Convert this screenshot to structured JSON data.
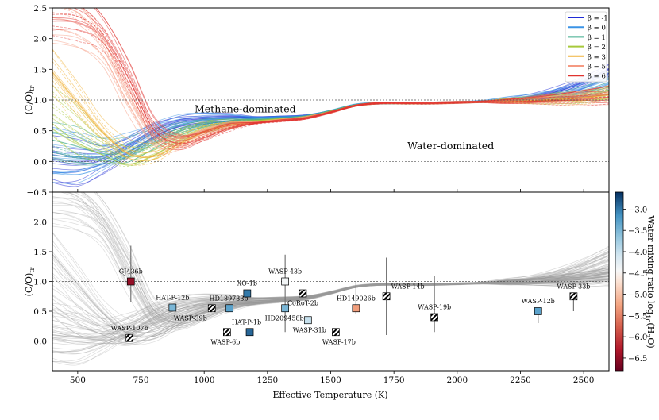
{
  "colors": {
    "beta": [
      "#1f2bd6",
      "#3a93e6",
      "#3aaa8a",
      "#a7c93b",
      "#f0b23a",
      "#f59a82",
      "#e0332f"
    ],
    "gray_curve": "#9a9a9a",
    "axis": "#000000"
  },
  "chart_data": [
    {
      "type": "line",
      "panel": "top",
      "ylabel": "(C/O)tr",
      "ylim": [
        -0.5,
        2.5
      ],
      "xlim": [
        400,
        2600
      ],
      "yticks": [
        "2.5",
        "2.0",
        "1.5",
        "1.0",
        "0.5",
        "0.0",
        "−0.5"
      ],
      "ytick_values": [
        2.5,
        2.0,
        1.5,
        1.0,
        0.5,
        0.0,
        -0.5
      ],
      "reference_lines": [
        1.0,
        0.0
      ],
      "annotations": [
        {
          "text": "Methane-dominated",
          "x": 1150,
          "y": 0.85
        },
        {
          "text": "Water-dominated",
          "x": 1960,
          "y": 0.25
        }
      ],
      "legend": {
        "placement": "top-right",
        "entries": [
          "β = -1",
          "β = 0",
          "β = 1",
          "β = 2",
          "β = 3",
          "β = 5",
          "β = 6"
        ]
      },
      "series": [
        {
          "name": "β = -1",
          "x": [
            400,
            500,
            600,
            700,
            800,
            900,
            1000,
            1100,
            1200,
            1300,
            1400,
            1500,
            1600,
            1700,
            1800,
            1900,
            2000,
            2100,
            2200,
            2300,
            2400,
            2500,
            2600
          ],
          "values": [
            0.05,
            0.0,
            0.05,
            0.25,
            0.5,
            0.65,
            0.7,
            0.72,
            0.72,
            0.73,
            0.75,
            0.82,
            0.92,
            0.95,
            0.95,
            0.95,
            0.96,
            0.98,
            1.0,
            1.05,
            1.15,
            1.3,
            1.5
          ]
        },
        {
          "name": "β = 0",
          "x": [
            400,
            500,
            600,
            700,
            800,
            900,
            1000,
            1100,
            1200,
            1300,
            1400,
            1500,
            1600,
            1700,
            1800,
            1900,
            2000,
            2100,
            2200,
            2300,
            2400,
            2500,
            2600
          ],
          "values": [
            0.1,
            0.08,
            0.1,
            0.25,
            0.45,
            0.6,
            0.68,
            0.7,
            0.71,
            0.72,
            0.74,
            0.82,
            0.92,
            0.95,
            0.95,
            0.95,
            0.96,
            0.98,
            1.0,
            1.03,
            1.1,
            1.2,
            1.35
          ]
        },
        {
          "name": "β = 1",
          "x": [
            400,
            500,
            600,
            700,
            800,
            900,
            1000,
            1100,
            1200,
            1300,
            1400,
            1500,
            1600,
            1700,
            1800,
            1900,
            2000,
            2100,
            2200,
            2300,
            2400,
            2500,
            2600
          ],
          "values": [
            0.3,
            0.2,
            0.1,
            0.15,
            0.35,
            0.52,
            0.62,
            0.66,
            0.68,
            0.7,
            0.73,
            0.82,
            0.92,
            0.95,
            0.95,
            0.95,
            0.96,
            0.97,
            0.99,
            1.01,
            1.05,
            1.1,
            1.2
          ]
        },
        {
          "name": "β = 2",
          "x": [
            400,
            500,
            600,
            700,
            800,
            900,
            1000,
            1100,
            1200,
            1300,
            1400,
            1500,
            1600,
            1700,
            1800,
            1900,
            2000,
            2100,
            2200,
            2300,
            2400,
            2500,
            2600
          ],
          "values": [
            0.8,
            0.5,
            0.25,
            0.1,
            0.2,
            0.4,
            0.55,
            0.62,
            0.66,
            0.69,
            0.72,
            0.81,
            0.91,
            0.95,
            0.95,
            0.95,
            0.96,
            0.97,
            0.99,
            1.0,
            1.03,
            1.06,
            1.12
          ]
        },
        {
          "name": "β = 3",
          "x": [
            400,
            500,
            600,
            700,
            800,
            900,
            1000,
            1100,
            1200,
            1300,
            1400,
            1500,
            1600,
            1700,
            1800,
            1900,
            2000,
            2100,
            2200,
            2300,
            2400,
            2500,
            2600
          ],
          "values": [
            1.5,
            1.0,
            0.5,
            0.15,
            0.1,
            0.3,
            0.5,
            0.6,
            0.64,
            0.68,
            0.72,
            0.8,
            0.91,
            0.95,
            0.95,
            0.95,
            0.96,
            0.97,
            0.98,
            1.0,
            1.02,
            1.05,
            1.1
          ]
        },
        {
          "name": "β = 5",
          "x": [
            400,
            500,
            600,
            700,
            800,
            900,
            1000,
            1100,
            1200,
            1300,
            1400,
            1500,
            1600,
            1700,
            1800,
            1900,
            2000,
            2100,
            2200,
            2300,
            2400,
            2500,
            2600
          ],
          "values": [
            2.3,
            2.2,
            1.8,
            1.0,
            0.35,
            0.3,
            0.45,
            0.58,
            0.63,
            0.67,
            0.71,
            0.8,
            0.91,
            0.95,
            0.95,
            0.95,
            0.96,
            0.97,
            0.98,
            1.0,
            1.02,
            1.04,
            1.08
          ]
        },
        {
          "name": "β = 6",
          "x": [
            400,
            500,
            600,
            700,
            800,
            900,
            1000,
            1100,
            1200,
            1300,
            1400,
            1500,
            1600,
            1700,
            1800,
            1900,
            2000,
            2100,
            2200,
            2300,
            2400,
            2500,
            2600
          ],
          "values": [
            2.45,
            2.4,
            2.1,
            1.4,
            0.55,
            0.32,
            0.42,
            0.56,
            0.62,
            0.66,
            0.7,
            0.8,
            0.91,
            0.95,
            0.95,
            0.95,
            0.96,
            0.97,
            0.98,
            1.0,
            1.02,
            1.04,
            1.07
          ]
        }
      ]
    },
    {
      "type": "scatter",
      "panel": "bottom",
      "xlabel": "Effective Temperature (K)",
      "ylabel": "(C/O)tr",
      "ylim": [
        -0.5,
        2.5
      ],
      "xlim": [
        400,
        2600
      ],
      "xticks": [
        "500",
        "750",
        "1000",
        "1250",
        "1500",
        "1750",
        "2000",
        "2250",
        "2500"
      ],
      "xtick_values": [
        500,
        750,
        1000,
        1250,
        1500,
        1750,
        2000,
        2250,
        2500
      ],
      "yticks": [
        "2.0",
        "1.5",
        "1.0",
        "0.5",
        "0.0"
      ],
      "ytick_values": [
        2.0,
        1.5,
        1.0,
        0.5,
        0.0
      ],
      "reference_lines": [
        1.0,
        0.0
      ],
      "colorbar": {
        "label": "Water mixing ratio log10(H2O)",
        "range": [
          -6.8,
          -2.6
        ],
        "ticks": [
          "−3.0",
          "−3.5",
          "−4.0",
          "−4.5",
          "−5.0",
          "−5.5",
          "−6.0",
          "−6.5"
        ],
        "tick_values": [
          -3.0,
          -3.5,
          -4.0,
          -4.5,
          -5.0,
          -5.5,
          -6.0,
          -6.5
        ]
      },
      "planets": [
        {
          "name": "GJ436b",
          "teff": 710,
          "co": 1.0,
          "err_low": 0.35,
          "err_high": 0.6,
          "log_h2o": -6.5,
          "hatched": false
        },
        {
          "name": "WASP-107b",
          "teff": 705,
          "co": 0.05,
          "err_low": 0.0,
          "err_high": 0.0,
          "log_h2o": null,
          "hatched": true
        },
        {
          "name": "HAT-P-12b",
          "teff": 875,
          "co": 0.56,
          "err_low": 0.0,
          "err_high": 0.0,
          "log_h2o": -3.5,
          "hatched": false
        },
        {
          "name": "WASP-39b",
          "teff": 1030,
          "co": 0.55,
          "err_low": 0.0,
          "err_high": 0.0,
          "log_h2o": null,
          "hatched": true
        },
        {
          "name": "HD189733b",
          "teff": 1100,
          "co": 0.55,
          "err_low": 0.0,
          "err_high": 0.0,
          "log_h2o": -3.3,
          "hatched": false
        },
        {
          "name": "XO-1b",
          "teff": 1170,
          "co": 0.8,
          "err_low": 0.0,
          "err_high": 0.0,
          "log_h2o": -3.0,
          "hatched": false
        },
        {
          "name": "WASP-6b",
          "teff": 1090,
          "co": 0.15,
          "err_low": 0.0,
          "err_high": 0.0,
          "log_h2o": null,
          "hatched": true
        },
        {
          "name": "HAT-P-1b",
          "teff": 1180,
          "co": 0.15,
          "err_low": 0.0,
          "err_high": 0.0,
          "log_h2o": -2.9,
          "hatched": false
        },
        {
          "name": "WASP-43b",
          "teff": 1320,
          "co": 1.0,
          "err_low": 0.85,
          "err_high": 0.45,
          "log_h2o": -4.4,
          "hatched": false
        },
        {
          "name": "CoRoT-2b",
          "teff": 1390,
          "co": 0.8,
          "err_low": 0.0,
          "err_high": 0.0,
          "log_h2o": null,
          "hatched": true
        },
        {
          "name": "HD209458b",
          "teff": 1320,
          "co": 0.55,
          "err_low": 0.0,
          "err_high": 0.0,
          "log_h2o": -3.5,
          "hatched": false
        },
        {
          "name": "WASP-31b",
          "teff": 1410,
          "co": 0.35,
          "err_low": 0.0,
          "err_high": 0.0,
          "log_h2o": -4.0,
          "hatched": false
        },
        {
          "name": "WASP-17b",
          "teff": 1520,
          "co": 0.15,
          "err_low": 0.0,
          "err_high": 0.0,
          "log_h2o": null,
          "hatched": true
        },
        {
          "name": "HD149026b",
          "teff": 1600,
          "co": 0.55,
          "err_low": 0.1,
          "err_high": 0.45,
          "log_h2o": -5.3,
          "hatched": false
        },
        {
          "name": "WASP-14b",
          "teff": 1720,
          "co": 0.75,
          "err_low": 0.65,
          "err_high": 0.65,
          "log_h2o": null,
          "hatched": true
        },
        {
          "name": "WASP-19b",
          "teff": 1910,
          "co": 0.4,
          "err_low": 0.25,
          "err_high": 0.7,
          "log_h2o": null,
          "hatched": true
        },
        {
          "name": "WASP-12b",
          "teff": 2320,
          "co": 0.5,
          "err_low": 0.2,
          "err_high": 0.0,
          "log_h2o": -3.3,
          "hatched": false
        },
        {
          "name": "WASP-33b",
          "teff": 2460,
          "co": 0.75,
          "err_low": 0.25,
          "err_high": 0.0,
          "log_h2o": null,
          "hatched": true
        }
      ]
    }
  ]
}
